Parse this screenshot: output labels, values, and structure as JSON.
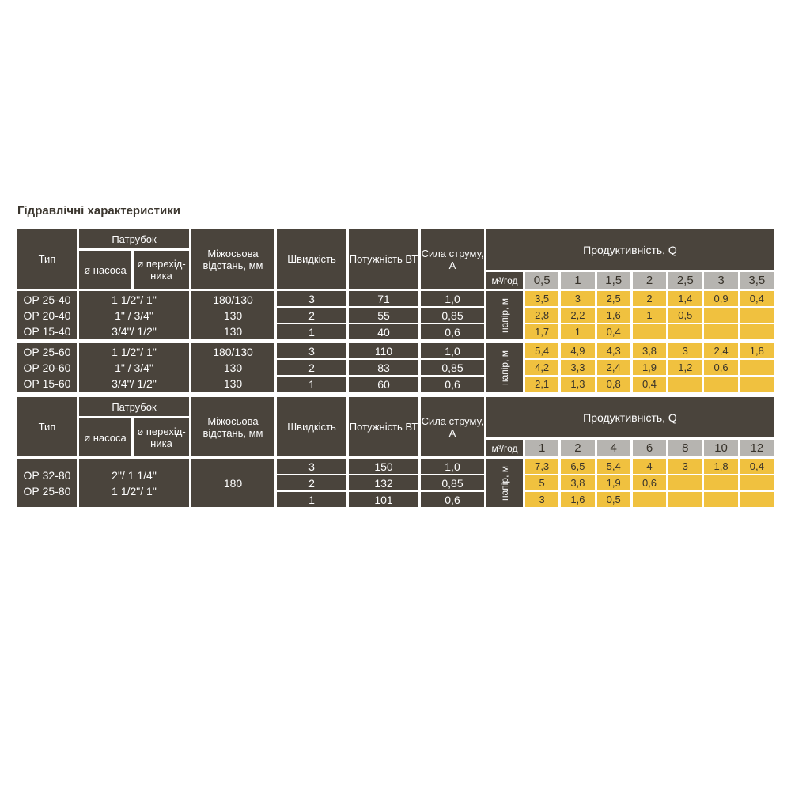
{
  "title": "Гідравлічні характеристики",
  "colors": {
    "cell_dark": "#4a443c",
    "cell_yellow": "#f0c13f",
    "cell_gray": "#b6b4b0",
    "text_light": "#fdfdfd",
    "text_dark": "#38332b"
  },
  "labels": {
    "type": "Тип",
    "pipe_group": "Патрубок",
    "pipe_pump": "ø насоса",
    "pipe_adapter": "ø перехід-ника",
    "distance": "Міжосьова відстань, мм",
    "speed": "Швидкість",
    "power": "Потужність ВТ",
    "current": "Сила струму, А",
    "productivity": "Продуктивність, Q",
    "flow_unit": "м³/год",
    "head_unit": "напір, м"
  },
  "section1": {
    "flow_values": [
      "0,5",
      "1",
      "1,5",
      "2",
      "2,5",
      "3",
      "3,5"
    ],
    "blocks": [
      {
        "types": [
          "ОР 25-40",
          "ОР 20-40",
          "ОР 15-40"
        ],
        "pipes": [
          "1 1/2\"/ 1\"",
          "1\" / 3/4\"",
          "3/4\"/ 1/2\""
        ],
        "distances": [
          "180/130",
          "130",
          "130"
        ],
        "rows": [
          {
            "speed": "3",
            "power": "71",
            "current": "1,0",
            "q": [
              "3,5",
              "3",
              "2,5",
              "2",
              "1,4",
              "0,9",
              "0,4"
            ]
          },
          {
            "speed": "2",
            "power": "55",
            "current": "0,85",
            "q": [
              "2,8",
              "2,2",
              "1,6",
              "1",
              "0,5",
              "",
              ""
            ]
          },
          {
            "speed": "1",
            "power": "40",
            "current": "0,6",
            "q": [
              "1,7",
              "1",
              "0,4",
              "",
              "",
              "",
              ""
            ]
          }
        ]
      },
      {
        "types": [
          "ОР 25-60",
          "ОР 20-60",
          "ОР 15-60"
        ],
        "pipes": [
          "1 1/2\"/ 1\"",
          "1\" / 3/4\"",
          "3/4\"/ 1/2\""
        ],
        "distances": [
          "180/130",
          "130",
          "130"
        ],
        "rows": [
          {
            "speed": "3",
            "power": "110",
            "current": "1,0",
            "q": [
              "5,4",
              "4,9",
              "4,3",
              "3,8",
              "3",
              "2,4",
              "1,8"
            ]
          },
          {
            "speed": "2",
            "power": "83",
            "current": "0,85",
            "q": [
              "4,2",
              "3,3",
              "2,4",
              "1,9",
              "1,2",
              "0,6",
              ""
            ]
          },
          {
            "speed": "1",
            "power": "60",
            "current": "0,6",
            "q": [
              "2,1",
              "1,3",
              "0,8",
              "0,4",
              "",
              "",
              ""
            ]
          }
        ]
      }
    ]
  },
  "section2": {
    "flow_values": [
      "1",
      "2",
      "4",
      "6",
      "8",
      "10",
      "12"
    ],
    "blocks": [
      {
        "types": [
          "ОР 32-80",
          "ОР 25-80"
        ],
        "pipes": [
          "2\"/ 1 1/4\"",
          "1 1/2\"/ 1\""
        ],
        "distances": [
          "180"
        ],
        "rows": [
          {
            "speed": "3",
            "power": "150",
            "current": "1,0",
            "q": [
              "7,3",
              "6,5",
              "5,4",
              "4",
              "3",
              "1,8",
              "0,4"
            ]
          },
          {
            "speed": "2",
            "power": "132",
            "current": "0,85",
            "q": [
              "5",
              "3,8",
              "1,9",
              "0,6",
              "",
              "",
              ""
            ]
          },
          {
            "speed": "1",
            "power": "101",
            "current": "0,6",
            "q": [
              "3",
              "1,6",
              "0,5",
              "",
              "",
              "",
              ""
            ]
          }
        ]
      }
    ]
  }
}
